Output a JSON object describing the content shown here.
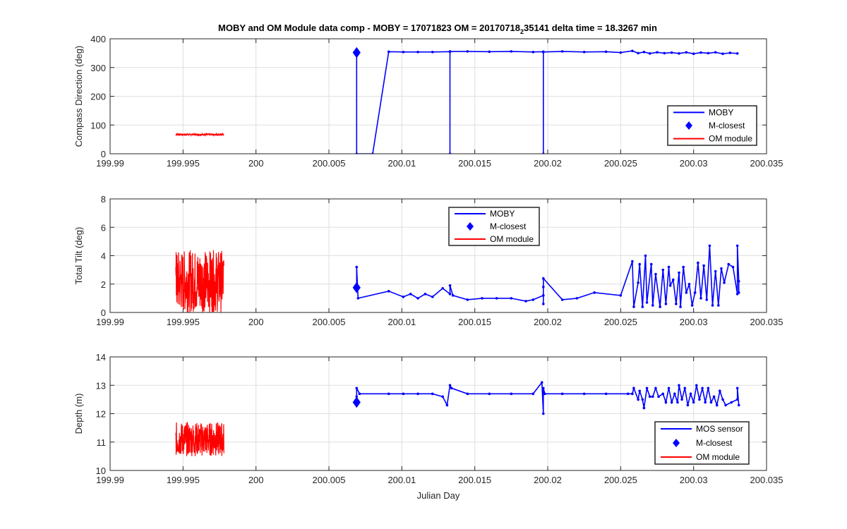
{
  "figure_title_main": "MOBY and OM Module data comp - MOBY = 17071823 OM = 20170718",
  "figure_title_sub": "2",
  "figure_title_tail": "35141 delta time = 18.3267 min",
  "chart_data": [
    {
      "type": "line",
      "ylabel": "Compass Direction (deg)",
      "xlabel": "",
      "xlim": [
        199.99,
        200.035
      ],
      "ylim": [
        0,
        400
      ],
      "xticks": [
        "199.99",
        "199.995",
        "200",
        "200.005",
        "200.01",
        "200.015",
        "200.02",
        "200.025",
        "200.03",
        "200.035"
      ],
      "yticks": [
        "0",
        "100",
        "200",
        "300",
        "400"
      ],
      "grid": true,
      "legend_position": "lower-right",
      "legend": [
        "MOBY",
        "M-closest",
        "OM module"
      ],
      "series": [
        {
          "name": "MOBY",
          "color": "#0000ff",
          "marker": "dot",
          "x": [
            200.0069,
            200.0069,
            200.008,
            200.0091,
            200.0101,
            200.0111,
            200.0121,
            200.0133,
            200.0133,
            200.0133,
            200.0145,
            200.016,
            200.0175,
            200.019,
            200.0197,
            200.0197,
            200.0197,
            200.021,
            200.0225,
            200.024,
            200.025,
            200.0258,
            200.0262,
            200.0266,
            200.027,
            200.0275,
            200.028,
            200.0285,
            200.029,
            200.0295,
            200.03,
            200.0305,
            200.031,
            200.0315,
            200.032,
            200.0325,
            200.033
          ],
          "y": [
            350,
            0,
            0,
            355,
            354,
            354,
            354,
            355,
            0,
            356,
            356,
            355,
            356,
            354,
            355,
            0,
            354,
            356,
            354,
            355,
            352,
            358,
            350,
            354,
            349,
            353,
            350,
            352,
            349,
            353,
            348,
            352,
            350,
            353,
            348,
            351,
            349
          ]
        },
        {
          "name": "M-closest",
          "color": "#0000ff",
          "marker": "diamond",
          "x": [
            200.0069
          ],
          "y": [
            352
          ]
        },
        {
          "name": "OM module",
          "color": "#ff0000",
          "band": true,
          "x_start": 199.9945,
          "x_end": 199.9978,
          "center": 67,
          "amplitude": 3
        }
      ]
    },
    {
      "type": "line",
      "ylabel": "Total Tilt (deg)",
      "xlabel": "",
      "xlim": [
        199.99,
        200.035
      ],
      "ylim": [
        0,
        8
      ],
      "xticks": [
        "199.99",
        "199.995",
        "200",
        "200.005",
        "200.01",
        "200.015",
        "200.02",
        "200.025",
        "200.03",
        "200.035"
      ],
      "yticks": [
        "0",
        "2",
        "4",
        "6",
        "8"
      ],
      "grid": true,
      "legend_position": "top-center",
      "legend": [
        "MOBY",
        "M-closest",
        "OM module"
      ],
      "series": [
        {
          "name": "MOBY",
          "color": "#0000ff",
          "marker": "dot",
          "x": [
            200.0069,
            200.0069,
            200.007,
            200.0091,
            200.0101,
            200.0106,
            200.0111,
            200.0116,
            200.0121,
            200.0128,
            200.0133,
            200.0133,
            200.0135,
            200.0145,
            200.0155,
            200.0165,
            200.0175,
            200.0185,
            200.019,
            200.0197,
            200.0197,
            200.0197,
            200.0197,
            200.021,
            200.022,
            200.0232,
            200.025,
            200.0258,
            200.0259,
            200.0262,
            200.0263,
            200.0265,
            200.0267,
            200.0268,
            200.0271,
            200.0272,
            200.0274,
            200.0277,
            200.0279,
            200.0281,
            200.0283,
            200.0284,
            200.0286,
            200.0288,
            200.029,
            200.0291,
            200.0293,
            200.0295,
            200.0297,
            200.0299,
            200.0301,
            200.0303,
            200.0305,
            200.0307,
            200.0309,
            200.0311,
            200.0313,
            200.0315,
            200.0317,
            200.0319,
            200.0321,
            200.0324,
            200.0327,
            200.033,
            200.033,
            200.0331,
            200.0331
          ],
          "y": [
            1.7,
            3.2,
            1.0,
            1.5,
            1.1,
            1.3,
            1.0,
            1.3,
            1.1,
            1.7,
            1.3,
            1.9,
            1.2,
            0.9,
            1.0,
            1.0,
            1.0,
            0.8,
            0.9,
            1.2,
            1.8,
            0.6,
            2.4,
            0.9,
            1.0,
            1.4,
            1.2,
            3.6,
            0.4,
            2.1,
            3.4,
            0.4,
            4.0,
            0.7,
            3.4,
            0.5,
            2.7,
            0.4,
            3.0,
            0.6,
            3.2,
            1.9,
            2.3,
            0.6,
            2.8,
            0.4,
            3.2,
            1.4,
            2.0,
            0.5,
            1.4,
            3.5,
            1.0,
            3.3,
            0.9,
            4.7,
            0.5,
            2.9,
            0.5,
            3.1,
            2.1,
            3.4,
            3.2,
            1.3,
            4.7,
            2.2,
            1.4
          ]
        },
        {
          "name": "M-closest",
          "color": "#0000ff",
          "marker": "diamond",
          "x": [
            200.0069
          ],
          "y": [
            1.75
          ]
        },
        {
          "name": "OM module",
          "color": "#ff0000",
          "band": true,
          "x_start": 199.9945,
          "x_end": 199.9978,
          "center": 2.2,
          "amplitude": 2.2
        }
      ]
    },
    {
      "type": "line",
      "ylabel": "Depth (m)",
      "xlabel": "Julian Day",
      "xlim": [
        199.99,
        200.035
      ],
      "ylim": [
        10,
        14
      ],
      "xticks": [
        "199.99",
        "199.995",
        "200",
        "200.005",
        "200.01",
        "200.015",
        "200.02",
        "200.025",
        "200.03",
        "200.035"
      ],
      "yticks": [
        "10",
        "11",
        "12",
        "13",
        "14"
      ],
      "grid": true,
      "legend_position": "lower-right",
      "legend": [
        "MOS sensor",
        "M-closest",
        "OM module"
      ],
      "series": [
        {
          "name": "MOS sensor",
          "color": "#0000ff",
          "marker": "dot",
          "x": [
            200.0069,
            200.0069,
            200.0071,
            200.0091,
            200.0101,
            200.0111,
            200.0121,
            200.0128,
            200.0131,
            200.0133,
            200.0134,
            200.0145,
            200.016,
            200.0175,
            200.019,
            200.0196,
            200.0197,
            200.0197,
            200.0198,
            200.021,
            200.0225,
            200.024,
            200.0255,
            200.0258,
            200.0259,
            200.0262,
            200.0263,
            200.0265,
            200.0266,
            200.0268,
            200.027,
            200.0272,
            200.0274,
            200.0276,
            200.0279,
            200.0281,
            200.0283,
            200.0285,
            200.0287,
            200.0289,
            200.029,
            200.0292,
            200.0294,
            200.0296,
            200.0298,
            200.03,
            200.0302,
            200.0304,
            200.0306,
            200.0308,
            200.031,
            200.0312,
            200.0314,
            200.0316,
            200.0318,
            200.032,
            200.0322,
            200.0326,
            200.033,
            200.033,
            200.0331
          ],
          "y": [
            12.6,
            12.9,
            12.7,
            12.7,
            12.7,
            12.7,
            12.7,
            12.6,
            12.3,
            13.0,
            12.9,
            12.7,
            12.7,
            12.7,
            12.7,
            13.1,
            12.0,
            12.9,
            12.7,
            12.7,
            12.7,
            12.7,
            12.7,
            12.7,
            12.9,
            12.5,
            12.8,
            12.5,
            12.2,
            12.9,
            12.6,
            12.6,
            12.9,
            12.6,
            12.7,
            12.4,
            12.9,
            12.4,
            12.7,
            12.4,
            13.0,
            12.5,
            12.9,
            12.3,
            12.7,
            12.4,
            13.0,
            12.5,
            12.9,
            12.4,
            12.9,
            12.4,
            12.6,
            12.3,
            12.8,
            12.5,
            12.3,
            12.4,
            12.5,
            12.9,
            12.3
          ]
        },
        {
          "name": "M-closest",
          "color": "#0000ff",
          "marker": "diamond",
          "x": [
            200.0069
          ],
          "y": [
            12.4
          ]
        },
        {
          "name": "OM module",
          "color": "#ff0000",
          "band": true,
          "x_start": 199.9945,
          "x_end": 199.9978,
          "center": 11.1,
          "amplitude": 0.6
        }
      ]
    }
  ]
}
